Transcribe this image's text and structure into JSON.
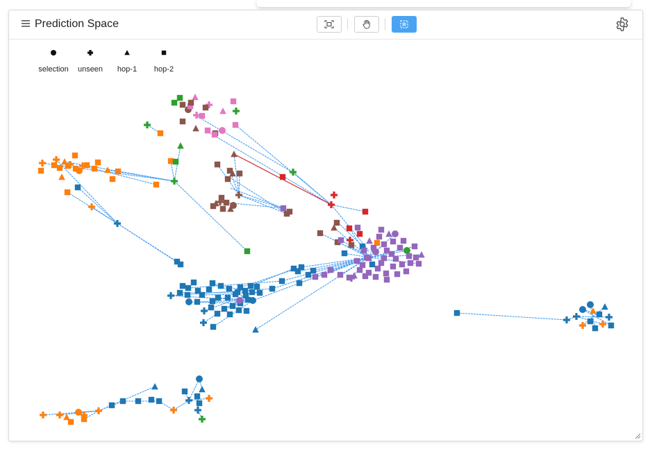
{
  "panel": {
    "title": "Prediction Space"
  },
  "toolbar": {
    "buttons": [
      {
        "name": "fit-view-button",
        "icon": "fit-view-icon",
        "active": false
      },
      {
        "name": "pan-button",
        "icon": "hand-icon",
        "active": false
      },
      {
        "name": "lasso-select-button",
        "icon": "select-icon",
        "active": true
      }
    ]
  },
  "settings_icon": "gear-icon",
  "legend": [
    {
      "label": "selection",
      "shape": "circle"
    },
    {
      "label": "unseen",
      "shape": "plus"
    },
    {
      "label": "hop-1",
      "shape": "triangle"
    },
    {
      "label": "hop-2",
      "shape": "square"
    }
  ],
  "colors": {
    "blue": "#1f77b4",
    "orange": "#ff7f0e",
    "green": "#2ca02c",
    "red": "#d62728",
    "purple": "#9467bd",
    "brown": "#8c564b",
    "pink": "#e377c2",
    "edge": "#4a9ff0",
    "highlight_edge": "#d62728",
    "active_button": "#4aa3f2"
  }
}
